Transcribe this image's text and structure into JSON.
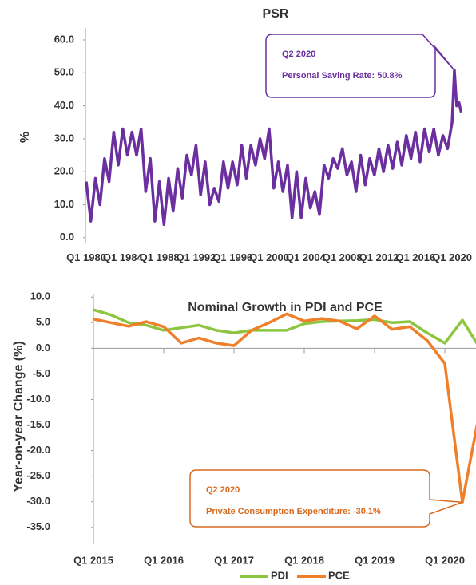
{
  "chart_data": [
    {
      "type": "line",
      "title": "PSR",
      "y_label": "%",
      "color": "#6b2fa0",
      "x": [
        1980,
        1980.5,
        1981,
        1981.5,
        1982,
        1982.5,
        1983,
        1983.5,
        1984,
        1984.5,
        1985,
        1985.5,
        1986,
        1986.5,
        1987,
        1987.5,
        1988,
        1988.5,
        1989,
        1989.5,
        1990,
        1990.5,
        1991,
        1991.5,
        1992,
        1992.5,
        1993,
        1993.5,
        1994,
        1994.5,
        1995,
        1995.5,
        1996,
        1996.5,
        1997,
        1997.5,
        1998,
        1998.5,
        1999,
        1999.5,
        2000,
        2000.5,
        2001,
        2001.5,
        2002,
        2002.5,
        2003,
        2003.5,
        2004,
        2004.5,
        2005,
        2005.5,
        2006,
        2006.5,
        2007,
        2007.5,
        2008,
        2008.5,
        2009,
        2009.5,
        2010,
        2010.5,
        2011,
        2011.5,
        2012,
        2012.5,
        2013,
        2013.5,
        2014,
        2014.5,
        2015,
        2015.5,
        2016,
        2016.5,
        2017,
        2017.5,
        2018,
        2018.5,
        2019,
        2019.5,
        2020,
        2020.25,
        2020.5,
        2020.75,
        2021
      ],
      "values": [
        17,
        5,
        18,
        10,
        24,
        17,
        32,
        22,
        33,
        25,
        32,
        25,
        33,
        14,
        24,
        5,
        17,
        4,
        18,
        8,
        21,
        12,
        25,
        19,
        28,
        13,
        23,
        10,
        15,
        11,
        23,
        15,
        23,
        16,
        28,
        18,
        28,
        22,
        30,
        24,
        33,
        15,
        23,
        14,
        22,
        6,
        20,
        6,
        18,
        9,
        14,
        7,
        22,
        18,
        24,
        21,
        27,
        19,
        23,
        14,
        25,
        16,
        24,
        19,
        27,
        20,
        28,
        21,
        29,
        22,
        31,
        24,
        32,
        23,
        33,
        26,
        33,
        25,
        31,
        27,
        35,
        50.8,
        40,
        41,
        38
      ],
      "xlim": [
        1980,
        2022
      ],
      "xticks": [
        {
          "value": 1980,
          "label": "Q1 1980"
        },
        {
          "value": 1984,
          "label": "Q1 1984"
        },
        {
          "value": 1988,
          "label": "Q1 1988"
        },
        {
          "value": 1992,
          "label": "Q1 1992"
        },
        {
          "value": 1996,
          "label": "Q1 1996"
        },
        {
          "value": 2000,
          "label": "Q1 2000"
        },
        {
          "value": 2004,
          "label": "Q1 2004"
        },
        {
          "value": 2008,
          "label": "Q1 2008"
        },
        {
          "value": 2012,
          "label": "Q1 2012"
        },
        {
          "value": 2016,
          "label": "Q1 2016"
        },
        {
          "value": 2020,
          "label": "Q1 2020"
        }
      ],
      "ylim": [
        -1.5,
        63.5
      ],
      "yticks": [
        {
          "value": 0,
          "label": "0.0"
        },
        {
          "value": 10,
          "label": "10.0"
        },
        {
          "value": 20,
          "label": "20.0"
        },
        {
          "value": 30,
          "label": "30.0"
        },
        {
          "value": 40,
          "label": "40.0"
        },
        {
          "value": 50,
          "label": "50.0"
        },
        {
          "value": 60,
          "label": "60.0"
        }
      ],
      "annotations": [
        {
          "title": "Q2 2020",
          "text": "Personal Saving Rate: 50.8%"
        }
      ]
    },
    {
      "type": "line",
      "title": "Nominal Growth in PDI and PCE",
      "y_label": "Year-on-year Change (%)",
      "categories": [
        "Q1 2015",
        null,
        null,
        null,
        "Q1 2016",
        null,
        null,
        null,
        "Q1 2017",
        null,
        null,
        null,
        "Q1 2018",
        null,
        null,
        null,
        "Q1 2019",
        null,
        null,
        null,
        "Q1 2020",
        null,
        null
      ],
      "series": [
        {
          "name": "PDI",
          "color": "#8cc63f",
          "values": [
            7.5,
            6.5,
            5.0,
            4.5,
            3.5,
            4.0,
            4.5,
            3.5,
            3.0,
            3.5,
            3.5,
            3.5,
            4.8,
            5.2,
            5.3,
            5.4,
            5.6,
            5.0,
            5.2,
            3.0,
            1.0,
            5.5,
            0.0
          ]
        },
        {
          "name": "PCE",
          "color": "#f07f2a",
          "values": [
            5.7,
            5.0,
            4.3,
            5.2,
            4.2,
            1.0,
            2.0,
            1.0,
            0.5,
            3.5,
            5.0,
            6.7,
            5.3,
            5.8,
            5.3,
            3.8,
            6.3,
            3.7,
            4.2,
            1.5,
            -3.0,
            -30.1,
            -12.0
          ]
        }
      ],
      "ylim": [
        -38,
        10.5
      ],
      "yticks": [
        {
          "value": 10,
          "label": "10.0"
        },
        {
          "value": 5,
          "label": "5.0"
        },
        {
          "value": 0,
          "label": "0.0"
        },
        {
          "value": -5,
          "label": "-5.0"
        },
        {
          "value": -10,
          "label": "-10.0"
        },
        {
          "value": -15,
          "label": "-15.0"
        },
        {
          "value": -20,
          "label": "-20.0"
        },
        {
          "value": -25,
          "label": "-25.0"
        },
        {
          "value": -30,
          "label": "-30.0"
        },
        {
          "value": -35,
          "label": "-35.0"
        }
      ],
      "legend": "bottom",
      "annotations": [
        {
          "title": "Q2 2020",
          "text": "Private Consumption Expenditure: -30.1%"
        }
      ]
    }
  ]
}
